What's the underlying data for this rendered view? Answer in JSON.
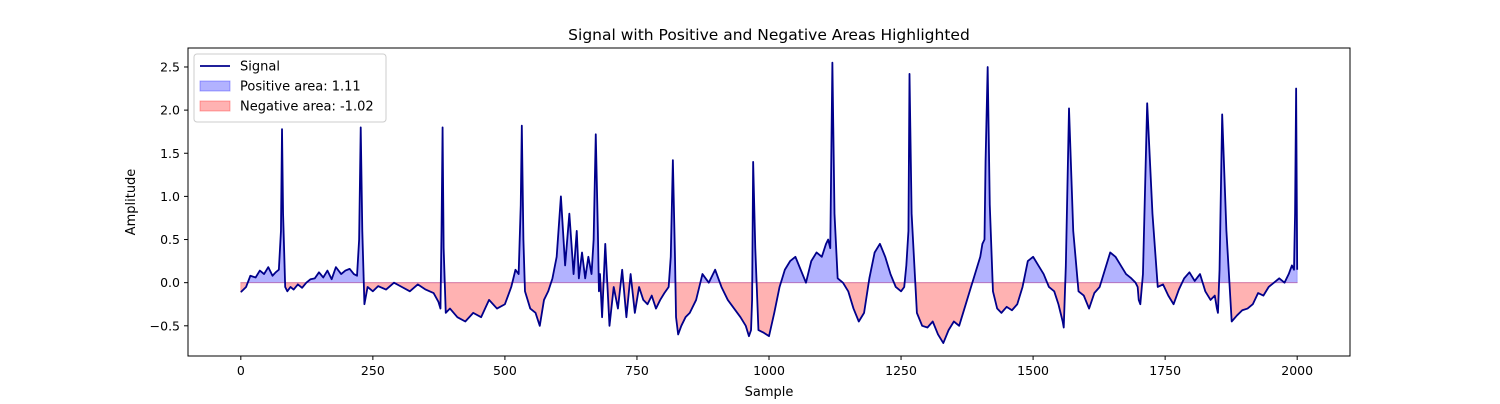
{
  "chart_data": {
    "type": "area",
    "title": "Signal with Positive and Negative Areas Highlighted",
    "xlabel": "Sample",
    "ylabel": "Amplitude",
    "xlim": [
      -100,
      2100
    ],
    "ylim": [
      -0.85,
      2.72
    ],
    "xticks": [
      0,
      250,
      500,
      750,
      1000,
      1250,
      1500,
      1750,
      2000
    ],
    "yticks": [
      -0.5,
      0.0,
      0.5,
      1.0,
      1.5,
      2.0,
      2.5
    ],
    "xtick_labels": [
      "0",
      "250",
      "500",
      "750",
      "1000",
      "1250",
      "1500",
      "1750",
      "2000"
    ],
    "ytick_labels": [
      "−0.5",
      "0.0",
      "0.5",
      "1.0",
      "1.5",
      "2.0",
      "2.5"
    ],
    "grid": false,
    "legend_position": "top-left",
    "colors": {
      "signal": "#00008b",
      "positive_fill": "#0000ff",
      "negative_fill": "#ff0000",
      "fill_opacity": 0.3
    },
    "series": [
      {
        "name": "Signal",
        "kind": "line",
        "x": [
          0,
          10,
          18,
          28,
          36,
          44,
          52,
          60,
          66,
          72,
          76,
          78,
          80,
          84,
          88,
          94,
          100,
          108,
          116,
          124,
          132,
          140,
          148,
          156,
          164,
          172,
          180,
          190,
          198,
          206,
          214,
          220,
          224,
          227,
          230,
          234,
          240,
          250,
          260,
          275,
          290,
          305,
          320,
          335,
          350,
          365,
          374,
          378,
          380,
          382,
          384,
          388,
          396,
          410,
          425,
          440,
          455,
          470,
          485,
          500,
          512,
          520,
          526,
          530,
          532,
          535,
          538,
          548,
          558,
          566,
          574,
          582,
          590,
          598,
          606,
          614,
          622,
          630,
          636,
          640,
          646,
          652,
          658,
          664,
          668,
          672,
          676,
          678,
          680,
          684,
          690,
          698,
          706,
          714,
          722,
          730,
          738,
          746,
          754,
          762,
          770,
          778,
          786,
          794,
          802,
          810,
          814,
          818,
          822,
          824,
          828,
          834,
          842,
          850,
          862,
          874,
          886,
          898,
          910,
          922,
          934,
          946,
          956,
          962,
          966,
          968,
          970,
          974,
          980,
          990,
          1000,
          1010,
          1020,
          1030,
          1040,
          1050,
          1060,
          1070,
          1080,
          1090,
          1100,
          1108,
          1112,
          1116,
          1118,
          1120,
          1124,
          1130,
          1140,
          1150,
          1160,
          1170,
          1180,
          1190,
          1200,
          1210,
          1220,
          1230,
          1240,
          1250,
          1256,
          1260,
          1264,
          1266,
          1270,
          1280,
          1290,
          1300,
          1310,
          1320,
          1330,
          1340,
          1350,
          1360,
          1370,
          1380,
          1390,
          1400,
          1404,
          1408,
          1410,
          1414,
          1418,
          1424,
          1432,
          1440,
          1450,
          1460,
          1470,
          1480,
          1490,
          1500,
          1510,
          1520,
          1530,
          1540,
          1548,
          1552,
          1556,
          1558,
          1562,
          1568,
          1576,
          1586,
          1596,
          1606,
          1616,
          1626,
          1636,
          1646,
          1656,
          1666,
          1676,
          1686,
          1694,
          1698,
          1700,
          1703,
          1708,
          1716,
          1726,
          1736,
          1746,
          1756,
          1766,
          1776,
          1786,
          1796,
          1806,
          1816,
          1826,
          1836,
          1844,
          1848,
          1850,
          1853,
          1858,
          1866,
          1876,
          1886,
          1896,
          1906,
          1916,
          1926,
          1936,
          1946,
          1956,
          1966,
          1976,
          1984,
          1990,
          1994,
          1996,
          1998,
          2000
        ],
        "y": [
          -0.11,
          -0.05,
          0.08,
          0.06,
          0.14,
          0.1,
          0.18,
          0.08,
          0.12,
          0.15,
          0.6,
          1.78,
          0.8,
          -0.05,
          -0.1,
          -0.05,
          -0.08,
          -0.02,
          -0.06,
          0.0,
          0.04,
          0.05,
          0.12,
          0.06,
          0.14,
          0.04,
          0.18,
          0.1,
          0.14,
          0.16,
          0.1,
          0.08,
          0.5,
          1.8,
          0.6,
          -0.25,
          -0.05,
          -0.1,
          -0.04,
          -0.08,
          0.0,
          -0.05,
          -0.1,
          -0.02,
          -0.08,
          -0.12,
          -0.22,
          -0.3,
          0.6,
          1.8,
          0.4,
          -0.35,
          -0.3,
          -0.4,
          -0.45,
          -0.35,
          -0.4,
          -0.2,
          -0.3,
          -0.25,
          -0.05,
          0.15,
          0.1,
          0.9,
          1.82,
          0.5,
          -0.1,
          -0.3,
          -0.35,
          -0.5,
          -0.2,
          -0.1,
          0.05,
          0.3,
          1.0,
          0.2,
          0.8,
          0.1,
          0.6,
          0.05,
          0.35,
          0.05,
          0.3,
          0.1,
          0.5,
          1.72,
          0.6,
          -0.1,
          0.1,
          -0.4,
          0.45,
          -0.5,
          -0.05,
          -0.3,
          0.15,
          -0.4,
          0.1,
          -0.35,
          -0.05,
          -0.2,
          -0.25,
          -0.15,
          -0.3,
          -0.2,
          -0.12,
          -0.05,
          0.3,
          1.42,
          0.3,
          -0.4,
          -0.6,
          -0.5,
          -0.4,
          -0.35,
          -0.2,
          0.1,
          0.0,
          0.15,
          -0.05,
          -0.2,
          -0.3,
          -0.4,
          -0.5,
          -0.62,
          -0.55,
          -0.2,
          1.4,
          0.4,
          -0.55,
          -0.58,
          -0.62,
          -0.35,
          -0.05,
          0.15,
          0.25,
          0.3,
          0.15,
          0.0,
          0.25,
          0.35,
          0.3,
          0.45,
          0.5,
          0.4,
          1.5,
          2.55,
          0.8,
          0.05,
          0.0,
          -0.1,
          -0.3,
          -0.45,
          -0.35,
          0.05,
          0.35,
          0.45,
          0.3,
          0.1,
          -0.05,
          -0.1,
          -0.05,
          0.2,
          0.6,
          2.42,
          0.8,
          -0.35,
          -0.5,
          -0.52,
          -0.45,
          -0.6,
          -0.7,
          -0.55,
          -0.45,
          -0.5,
          -0.3,
          -0.1,
          0.1,
          0.3,
          0.45,
          0.5,
          1.4,
          2.5,
          0.9,
          -0.1,
          -0.3,
          -0.35,
          -0.28,
          -0.32,
          -0.25,
          -0.05,
          0.25,
          0.3,
          0.2,
          0.1,
          -0.05,
          -0.1,
          -0.25,
          -0.35,
          -0.45,
          -0.52,
          0.2,
          2.02,
          0.6,
          -0.1,
          -0.15,
          -0.3,
          -0.12,
          -0.05,
          0.15,
          0.35,
          0.3,
          0.2,
          0.1,
          0.05,
          0.0,
          -0.05,
          -0.2,
          -0.25,
          0.1,
          2.08,
          0.8,
          -0.05,
          -0.02,
          -0.15,
          -0.25,
          -0.08,
          0.05,
          0.12,
          0.02,
          0.1,
          -0.1,
          -0.2,
          -0.15,
          -0.3,
          -0.35,
          0.15,
          1.95,
          0.6,
          -0.45,
          -0.38,
          -0.32,
          -0.3,
          -0.25,
          -0.12,
          -0.15,
          -0.05,
          0.0,
          0.05,
          0.0,
          0.1,
          0.2,
          0.15,
          0.8,
          2.25,
          0.15
        ]
      }
    ],
    "fills": [
      {
        "name": "Positive area: 1.11",
        "label_prefix": "Positive area:",
        "value": 1.11,
        "color_key": "positive_fill"
      },
      {
        "name": "Negative area: -1.02",
        "label_prefix": "Negative area:",
        "value": -1.02,
        "color_key": "negative_fill"
      }
    ],
    "legend": {
      "entries": [
        {
          "label": "Signal",
          "kind": "line",
          "color_key": "signal"
        },
        {
          "label": "Positive area: 1.11",
          "kind": "patch",
          "color_key": "positive_fill"
        },
        {
          "label": "Negative area: -1.02",
          "kind": "patch",
          "color_key": "negative_fill"
        }
      ]
    }
  }
}
